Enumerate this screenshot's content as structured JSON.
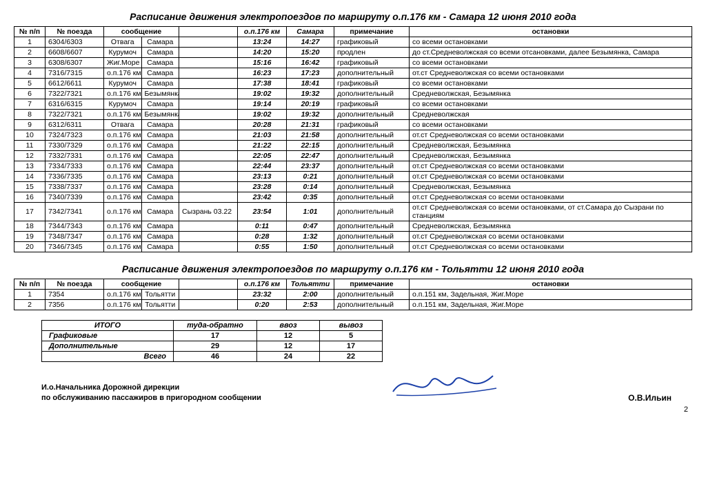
{
  "table1": {
    "title": "Расписание движения электропоездов по маршруту о.п.176 км - Самара 12 июня 2010 года",
    "headers": {
      "num": "№ п/п",
      "train": "№ поезда",
      "route": "сообщение",
      "t1": "о.п.176 км",
      "t2": "Самара",
      "remark": "примечание",
      "stops": "остановки"
    },
    "rows": [
      {
        "n": "1",
        "tr": "6304/6303",
        "r1": "Отвага",
        "r2": "Самара",
        "note": "",
        "t1": "13:24",
        "t2": "14:27",
        "rem": "графиковый",
        "st": "со всеми остановками"
      },
      {
        "n": "2",
        "tr": "6608/6607",
        "r1": "Курумоч",
        "r2": "Самара",
        "note": "",
        "t1": "14:20",
        "t2": "15:20",
        "rem": "продлен",
        "st": "до ст.Средневолжская со всеми отсановками, далее Безымянка, Самара"
      },
      {
        "n": "3",
        "tr": "6308/6307",
        "r1": "Жиг.Море",
        "r2": "Самара",
        "note": "",
        "t1": "15:16",
        "t2": "16:42",
        "rem": "графиковый",
        "st": "со всеми остановками"
      },
      {
        "n": "4",
        "tr": "7316/7315",
        "r1": "о.п.176 км",
        "r2": "Самара",
        "note": "",
        "t1": "16:23",
        "t2": "17:23",
        "rem": "дополнительный",
        "st": "от.ст Средневолжская со всеми остановками"
      },
      {
        "n": "5",
        "tr": "6612/6611",
        "r1": "Курумоч",
        "r2": "Самара",
        "note": "",
        "t1": "17:38",
        "t2": "18:41",
        "rem": "графиковый",
        "st": "со всеми остановками"
      },
      {
        "n": "6",
        "tr": "7322/7321",
        "r1": "о.п.176 км",
        "r2": "Безымянка",
        "note": "",
        "t1": "19:02",
        "t2": "19:32",
        "rem": "дополнительный",
        "st": "Средневолжская, Безымянка"
      },
      {
        "n": "7",
        "tr": "6316/6315",
        "r1": "Курумоч",
        "r2": "Самара",
        "note": "",
        "t1": "19:14",
        "t2": "20:19",
        "rem": "графиковый",
        "st": "со всеми остановками"
      },
      {
        "n": "8",
        "tr": "7322/7321",
        "r1": "о.п.176 км",
        "r2": "Безымянка",
        "note": "",
        "t1": "19:02",
        "t2": "19:32",
        "rem": "дополнительный",
        "st": "Средневолжская"
      },
      {
        "n": "9",
        "tr": "6312/6311",
        "r1": "Отвага",
        "r2": "Самара",
        "note": "",
        "t1": "20:28",
        "t2": "21:31",
        "rem": "графиковый",
        "st": "со всеми остановками"
      },
      {
        "n": "10",
        "tr": "7324/7323",
        "r1": "о.п.176 км",
        "r2": "Самара",
        "note": "",
        "t1": "21:03",
        "t2": "21:58",
        "rem": "дополнительный",
        "st": "от.ст Средневолжская со всеми остановками"
      },
      {
        "n": "11",
        "tr": "7330/7329",
        "r1": "о.п.176 км",
        "r2": "Самара",
        "note": "",
        "t1": "21:22",
        "t2": "22:15",
        "rem": "дополнительный",
        "st": "Средневолжская, Безымянка"
      },
      {
        "n": "12",
        "tr": "7332/7331",
        "r1": "о.п.176 км",
        "r2": "Самара",
        "note": "",
        "t1": "22:05",
        "t2": "22:47",
        "rem": "дополнительный",
        "st": "Средневолжская, Безымянка"
      },
      {
        "n": "13",
        "tr": "7334/7333",
        "r1": "о.п.176 км",
        "r2": "Самара",
        "note": "",
        "t1": "22:44",
        "t2": "23:37",
        "rem": "дополнительный",
        "st": "от.ст Средневолжская со всеми остановками"
      },
      {
        "n": "14",
        "tr": "7336/7335",
        "r1": "о.п.176 км",
        "r2": "Самара",
        "note": "",
        "t1": "23:13",
        "t2": "0:21",
        "rem": "дополнительный",
        "st": "от.ст Средневолжская со всеми остановками"
      },
      {
        "n": "15",
        "tr": "7338/7337",
        "r1": "о.п.176 км",
        "r2": "Самара",
        "note": "",
        "t1": "23:28",
        "t2": "0:14",
        "rem": "дополнительный",
        "st": "Средневолжская, Безымянка"
      },
      {
        "n": "16",
        "tr": "7340/7339",
        "r1": "о.п.176 км",
        "r2": "Самара",
        "note": "",
        "t1": "23:42",
        "t2": "0:35",
        "rem": "дополнительный",
        "st": "от.ст Средневолжская со всеми остановками"
      },
      {
        "n": "17",
        "tr": "7342/7341",
        "r1": "о.п.176 км",
        "r2": "Самара",
        "note": "Сызрань 03.22",
        "t1": "23:54",
        "t2": "1:01",
        "rem": "дополнительный",
        "st": "от.ст Средневолжская со всеми остановками, от ст.Самара до Сызрани по станциям"
      },
      {
        "n": "18",
        "tr": "7344/7343",
        "r1": "о.п.176 км",
        "r2": "Самара",
        "note": "",
        "t1": "0:11",
        "t2": "0:47",
        "rem": "дополнительный",
        "st": "Средневолжская, Безымянка"
      },
      {
        "n": "19",
        "tr": "7348/7347",
        "r1": "о.п.176 км",
        "r2": "Самара",
        "note": "",
        "t1": "0:28",
        "t2": "1:32",
        "rem": "дополнительный",
        "st": "от.ст Средневолжская со всеми остановками"
      },
      {
        "n": "20",
        "tr": "7346/7345",
        "r1": "о.п.176 км",
        "r2": "Самара",
        "note": "",
        "t1": "0:55",
        "t2": "1:50",
        "rem": "дополнительный",
        "st": "от.ст Средневолжская со всеми остановками"
      }
    ]
  },
  "table2": {
    "title": "Расписание движения электропоездов по маршруту о.п.176 км - Тольятти 12 июня 2010 года",
    "headers": {
      "num": "№ п/п",
      "train": "№ поезда",
      "route": "сообщение",
      "t1": "о.п.176 км",
      "t2": "Тольятти",
      "remark": "примечание",
      "stops": "остановки"
    },
    "rows": [
      {
        "n": "1",
        "tr": "7354",
        "r1": "о.п.176 км",
        "r2": "Тольятти",
        "note": "",
        "t1": "23:32",
        "t2": "2:00",
        "rem": "дополнительный",
        "st": "о.п.151 км, Задельная, Жиг.Море"
      },
      {
        "n": "2",
        "tr": "7356",
        "r1": "о.п.176 км",
        "r2": "Тольятти",
        "note": "",
        "t1": "0:20",
        "t2": "2:53",
        "rem": "дополнительный",
        "st": "о.п.151 км, Задельная, Жиг.Море"
      }
    ]
  },
  "summary": {
    "headers": {
      "total": "ИТОГО",
      "rt": "туда-обратно",
      "in": "ввоз",
      "out": "вывоз"
    },
    "rows": [
      {
        "lab": "Графиковые",
        "rt": "17",
        "in": "12",
        "out": "5"
      },
      {
        "lab": "Дополнительные",
        "rt": "29",
        "in": "12",
        "out": "17"
      },
      {
        "lab": "Всего",
        "rt": "46",
        "in": "24",
        "out": "22"
      }
    ]
  },
  "sign": {
    "left1": "И.о.Начальника Дорожной дирекции",
    "left2": "по обслуживанию пассажиров в пригородном сообщении",
    "name": "О.В.Ильин"
  },
  "page": "2"
}
